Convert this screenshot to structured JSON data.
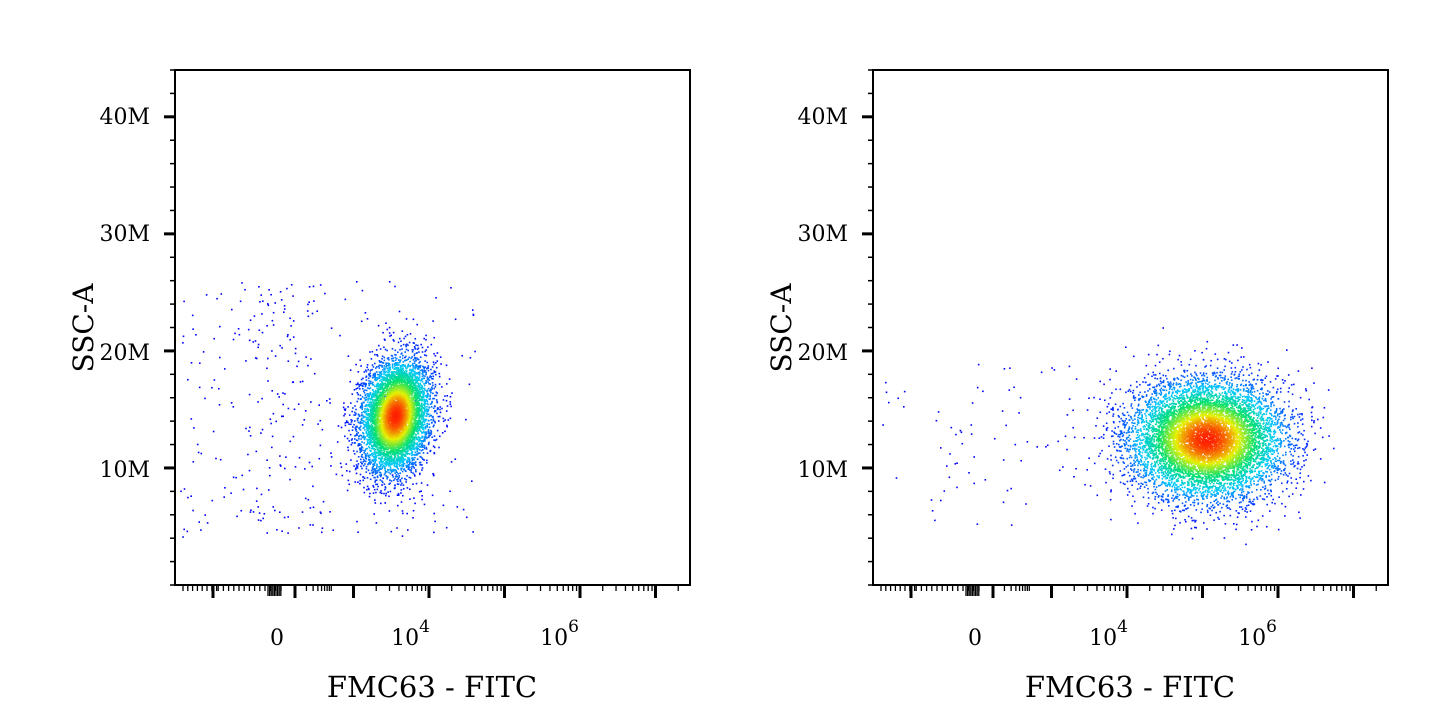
{
  "chart_data": [
    {
      "type": "scatter",
      "style": "density dot plot",
      "xlabel": "FMC63 - FITC",
      "ylabel": "SSC-A",
      "x_scale": "biexponential",
      "x_ticks": [
        {
          "value": 0,
          "label": "0",
          "exp": ""
        },
        {
          "value": 10000,
          "label": "10",
          "exp": "4"
        },
        {
          "value": 1000000,
          "label": "10",
          "exp": "6"
        }
      ],
      "y_ticks": [
        {
          "value": 10000000,
          "label": "10M"
        },
        {
          "value": 20000000,
          "label": "20M"
        },
        {
          "value": 30000000,
          "label": "30M"
        },
        {
          "value": 40000000,
          "label": "40M"
        }
      ],
      "ylim": [
        0,
        44000000
      ],
      "clusters": [
        {
          "kind": "main",
          "center_log_x": 3.55,
          "center_y": 14500000,
          "spread_log_x": 0.22,
          "spread_y": 4300000,
          "tilt": 0.16,
          "n": 6500
        },
        {
          "kind": "sparse",
          "range_log_x": [
            -0.5,
            4.6
          ],
          "range_y": [
            4000000,
            26000000
          ],
          "n": 340
        }
      ],
      "colormap": [
        "#0000ff",
        "#00c8ff",
        "#00e070",
        "#e8f000",
        "#ff2000"
      ]
    },
    {
      "type": "scatter",
      "style": "density dot plot",
      "xlabel": "FMC63 - FITC",
      "ylabel": "SSC-A",
      "x_scale": "biexponential",
      "x_ticks": [
        {
          "value": 0,
          "label": "0",
          "exp": ""
        },
        {
          "value": 10000,
          "label": "10",
          "exp": "4"
        },
        {
          "value": 1000000,
          "label": "10",
          "exp": "6"
        }
      ],
      "y_ticks": [
        {
          "value": 10000000,
          "label": "10M"
        },
        {
          "value": 20000000,
          "label": "20M"
        },
        {
          "value": 30000000,
          "label": "30M"
        },
        {
          "value": 40000000,
          "label": "40M"
        }
      ],
      "ylim": [
        0,
        44000000
      ],
      "clusters": [
        {
          "kind": "main",
          "center_log_x": 5.05,
          "center_y": 12500000,
          "spread_log_x": 0.5,
          "spread_y": 4500000,
          "tilt": 0.0,
          "n": 8500
        },
        {
          "kind": "sparse",
          "range_log_x": [
            -0.5,
            3.4
          ],
          "range_y": [
            5000000,
            19000000
          ],
          "n": 70
        }
      ],
      "colormap": [
        "#0000ff",
        "#00c8ff",
        "#00e070",
        "#e8f000",
        "#ff2000"
      ]
    }
  ]
}
